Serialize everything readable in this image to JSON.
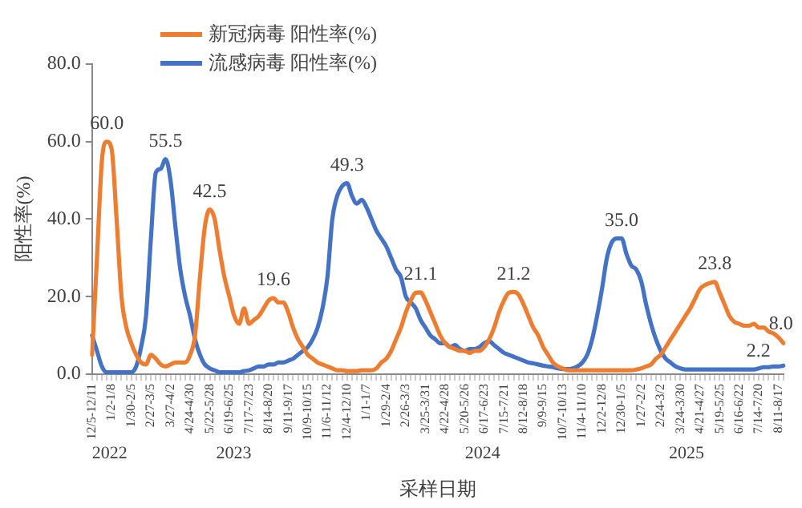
{
  "chart_data": {
    "type": "line",
    "xlabel": "采样日期",
    "ylabel": "阳性率(%)",
    "ylim": [
      0,
      80
    ],
    "yticks": [
      {
        "value": 0,
        "label": "0.0"
      },
      {
        "value": 20,
        "label": "20.0"
      },
      {
        "value": 40,
        "label": "40.0"
      },
      {
        "value": 60,
        "label": "60.0"
      },
      {
        "value": 80,
        "label": "80.0"
      }
    ],
    "grid": false,
    "legend": "top left",
    "marker": "none",
    "line_style": "solid",
    "categories": [
      "12/5-12/11",
      null,
      null,
      null,
      "1/2-1/8",
      null,
      null,
      null,
      "1/30-2/5",
      null,
      null,
      null,
      "2/27-3/5",
      null,
      null,
      null,
      "3/27-4/2",
      null,
      null,
      null,
      "4/24-4/30",
      null,
      null,
      null,
      "5/22-5/28",
      null,
      null,
      null,
      "6/19-6/25",
      null,
      null,
      null,
      "7/17-7/23",
      null,
      null,
      null,
      "8/14-8/20",
      null,
      null,
      null,
      "9/11-9/17",
      null,
      null,
      null,
      "10/9-10/15",
      null,
      null,
      null,
      "11/6-11/12",
      null,
      null,
      null,
      "12/4-12/10",
      null,
      null,
      null,
      "1/1-1/7",
      null,
      null,
      null,
      "1/29-2/4",
      null,
      null,
      null,
      "2/26-3/3",
      null,
      null,
      null,
      "3/25-3/31",
      null,
      null,
      null,
      "4/22-4/28",
      null,
      null,
      null,
      "5/20-5/26",
      null,
      null,
      null,
      "6/17-6/23",
      null,
      null,
      null,
      "7/15-7/21",
      null,
      null,
      null,
      "8/12-8/18",
      null,
      null,
      null,
      "9/9-9/15",
      null,
      null,
      null,
      "10/7-10/13",
      null,
      null,
      null,
      "11/4-11/10",
      null,
      null,
      null,
      "12/2-12/8",
      null,
      null,
      null,
      "12/30-1/5",
      null,
      null,
      null,
      "1/27-2/2",
      null,
      null,
      null,
      "2/24-3/2",
      null,
      null,
      null,
      "3/24-3/30",
      null,
      null,
      null,
      "4/21-4/27",
      null,
      null,
      null,
      "5/19-5/25",
      null,
      null,
      null,
      "6/16-6/22",
      null,
      null,
      null,
      "7/14-7/20",
      null,
      null,
      null,
      "8/11-8/17",
      null
    ],
    "series": [
      {
        "name": "新冠病毒 阳性率(%)",
        "color": "#ed7d31",
        "values": [
          5,
          30,
          55,
          60,
          58,
          40,
          20,
          12,
          8,
          5,
          3,
          2.5,
          5,
          4,
          2.5,
          2,
          2.5,
          3,
          3,
          3,
          5,
          10,
          25,
          38,
          42.5,
          40,
          32,
          25,
          20,
          15,
          13,
          17,
          13,
          14,
          15,
          17,
          19,
          19.6,
          18.5,
          18.5,
          16,
          12,
          9,
          7,
          5,
          4,
          3,
          2.5,
          2,
          1.5,
          1,
          1,
          0.8,
          0.8,
          0.8,
          1,
          1,
          1,
          1.5,
          3,
          4,
          6,
          9,
          12,
          16,
          19,
          21,
          21.1,
          19,
          16,
          13,
          10,
          8,
          7,
          6.5,
          6,
          6,
          5.5,
          6,
          6,
          7,
          9,
          12,
          16,
          19,
          21,
          21.2,
          20.5,
          18,
          15,
          12,
          10,
          7,
          5,
          3,
          2,
          1.5,
          1,
          1,
          1,
          1,
          1,
          1,
          1,
          1,
          1,
          1,
          1,
          1,
          1,
          1,
          1.2,
          1.5,
          2,
          2.5,
          4,
          5,
          7,
          9,
          11,
          13,
          15,
          17,
          19.5,
          22,
          23,
          23.5,
          23.8,
          21,
          18,
          15,
          13.5,
          13,
          12.5,
          12.5,
          13,
          12,
          12,
          11,
          10.5,
          9.5,
          8.0
        ],
        "value_labels": [
          null,
          null,
          null,
          "60.0",
          null,
          null,
          null,
          null,
          null,
          null,
          null,
          null,
          null,
          null,
          null,
          null,
          null,
          null,
          null,
          null,
          null,
          null,
          null,
          null,
          "42.5",
          null,
          null,
          null,
          null,
          null,
          null,
          null,
          null,
          null,
          null,
          null,
          null,
          "19.6",
          null,
          null,
          null,
          null,
          null,
          null,
          null,
          null,
          null,
          null,
          null,
          null,
          null,
          null,
          null,
          null,
          null,
          null,
          null,
          null,
          null,
          null,
          null,
          null,
          null,
          null,
          null,
          null,
          null,
          "21.1",
          null,
          null,
          null,
          null,
          null,
          null,
          null,
          null,
          null,
          null,
          null,
          null,
          null,
          null,
          null,
          null,
          null,
          null,
          "21.2",
          null,
          null,
          null,
          null,
          null,
          null,
          null,
          null,
          null,
          null,
          null,
          null,
          null,
          null,
          null,
          null,
          null,
          null,
          null,
          null,
          null,
          null,
          null,
          null,
          null,
          null,
          null,
          null,
          null,
          null,
          null,
          null,
          null,
          null,
          null,
          null,
          null,
          null,
          null,
          null,
          "23.8",
          null,
          null,
          null,
          null,
          null,
          null,
          null,
          null,
          null,
          null,
          null,
          null,
          null,
          "8.0"
        ]
      },
      {
        "name": "流感病毒 阳性率(%)",
        "color": "#4472c4",
        "values": [
          10,
          6,
          2,
          0.5,
          0.5,
          0.5,
          0.5,
          0.5,
          0.5,
          2,
          7,
          15,
          35,
          52,
          53,
          55.5,
          50,
          38,
          27,
          20,
          15,
          9,
          5,
          2.5,
          1.5,
          1,
          0.5,
          0.5,
          0.5,
          0.5,
          0.5,
          0.8,
          1,
          1.5,
          2,
          2,
          2.5,
          2.5,
          3,
          3,
          3.5,
          4,
          5,
          6,
          7,
          9,
          12,
          17,
          25,
          40,
          46,
          48.5,
          49.3,
          46,
          44,
          45,
          43,
          40,
          37,
          35,
          33,
          30,
          27,
          25,
          20,
          18.5,
          17,
          14,
          12,
          10,
          9,
          8,
          8,
          7,
          7.5,
          6.5,
          6,
          6.5,
          6.5,
          7,
          8,
          8.5,
          7.5,
          6.5,
          5.5,
          5,
          4.5,
          4,
          3.5,
          3,
          2.8,
          2.5,
          2.2,
          2,
          1.8,
          1.5,
          1.3,
          1.3,
          1.5,
          2,
          3,
          5,
          9,
          15,
          22,
          30,
          34,
          35,
          35,
          31,
          28,
          27,
          24,
          18,
          13,
          9,
          6,
          4,
          3,
          2,
          1.5,
          1.2,
          1.2,
          1.2,
          1.2,
          1.2,
          1.2,
          1.2,
          1.2,
          1.2,
          1.2,
          1.2,
          1.2,
          1.2,
          1.2,
          1.2,
          1.5,
          1.8,
          1.8,
          2,
          2,
          2.2
        ],
        "value_labels": [
          null,
          null,
          null,
          null,
          null,
          null,
          null,
          null,
          null,
          null,
          null,
          null,
          null,
          null,
          null,
          "55.5",
          null,
          null,
          null,
          null,
          null,
          null,
          null,
          null,
          null,
          null,
          null,
          null,
          null,
          null,
          null,
          null,
          null,
          null,
          null,
          null,
          null,
          null,
          null,
          null,
          null,
          null,
          null,
          null,
          null,
          null,
          null,
          null,
          null,
          null,
          null,
          null,
          "49.3",
          null,
          null,
          null,
          null,
          null,
          null,
          null,
          null,
          null,
          null,
          null,
          null,
          null,
          null,
          null,
          null,
          null,
          null,
          null,
          null,
          null,
          null,
          null,
          null,
          null,
          null,
          null,
          null,
          null,
          null,
          null,
          null,
          null,
          null,
          null,
          null,
          null,
          null,
          null,
          null,
          null,
          null,
          null,
          null,
          null,
          null,
          null,
          null,
          null,
          null,
          null,
          null,
          null,
          null,
          null,
          "35.0",
          null,
          null,
          null,
          null,
          null,
          null,
          null,
          null,
          null,
          null,
          null,
          null,
          null,
          null,
          null,
          null,
          null,
          null,
          null,
          null,
          null,
          null,
          null,
          null,
          null,
          null,
          null,
          null,
          null,
          null,
          null,
          null,
          "2.2"
        ]
      }
    ],
    "annotations": [
      "2022",
      "2023",
      "2024",
      "2025"
    ]
  }
}
